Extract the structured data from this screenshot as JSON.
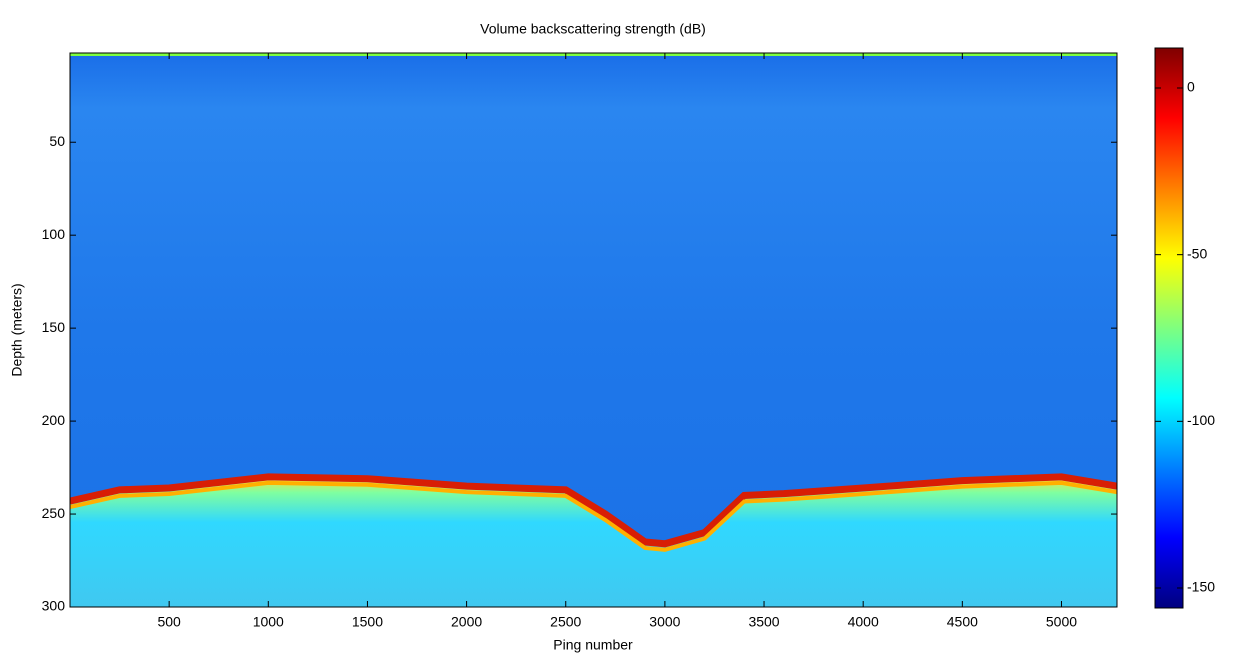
{
  "chart_data": {
    "type": "heatmap",
    "title": "Volume backscattering strength (dB)",
    "x_label": "Ping number",
    "y_label": "Depth (meters)",
    "xlim": [
      0,
      5280
    ],
    "xticks": [
      500,
      1000,
      1500,
      2000,
      2500,
      3000,
      3500,
      4000,
      4500,
      5000
    ],
    "ylim": [
      2,
      300
    ],
    "yticks": [
      50,
      100,
      150,
      200,
      250,
      300
    ],
    "y_inverted": true,
    "x": [
      0,
      250,
      500,
      1000,
      1500,
      2000,
      2500,
      2700,
      2900,
      3000,
      3200,
      3400,
      3600,
      4000,
      4500,
      5000,
      5280
    ],
    "values": [
      243,
      237,
      236,
      230,
      231,
      235,
      237,
      250,
      265,
      266,
      260,
      240,
      239,
      236,
      232,
      230,
      235
    ],
    "color": "#d81e05",
    "colorbar": {
      "clim": [
        -156,
        12
      ],
      "ticks": [
        0,
        -50,
        -100,
        -150
      ],
      "colors": [
        "#00007f",
        "#0000ff",
        "#007fff",
        "#00ffff",
        "#7fff7f",
        "#ffff00",
        "#ff7f00",
        "#ff0000",
        "#7f0000"
      ]
    }
  }
}
